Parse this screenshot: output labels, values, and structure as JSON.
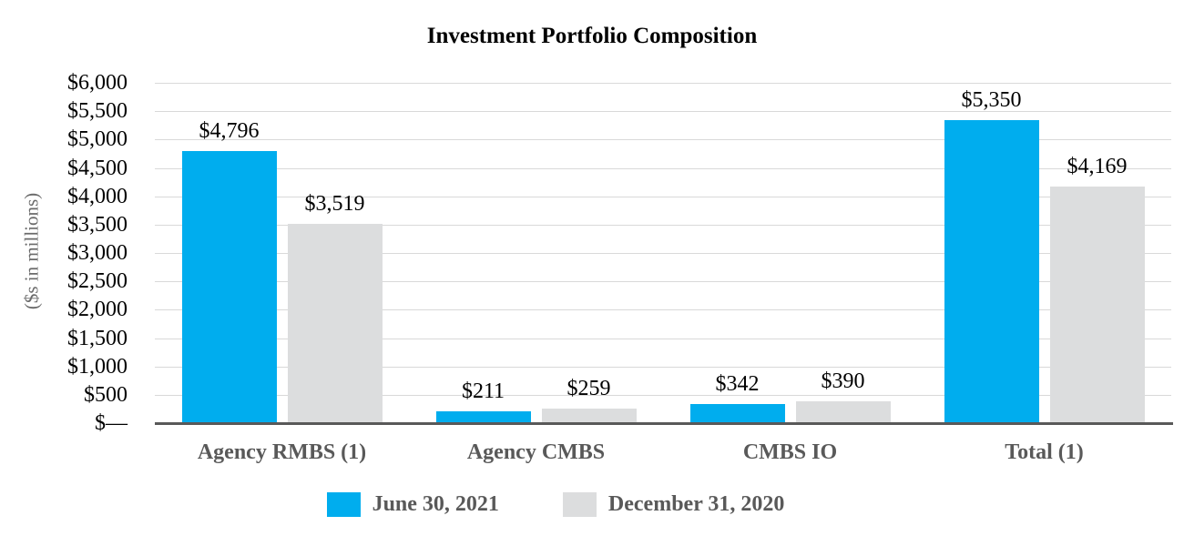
{
  "chart_data": {
    "type": "bar",
    "title": "Investment Portfolio Composition",
    "ylabel": "($s in millions)",
    "categories": [
      "Agency RMBS (1)",
      "Agency CMBS",
      "CMBS IO",
      "Total (1)"
    ],
    "series": [
      {
        "name": "June 30, 2021",
        "color": "#00ADEE",
        "values": [
          4796,
          211,
          342,
          5350
        ],
        "labels": [
          "$4,796",
          "$211",
          "$342",
          "$5,350"
        ]
      },
      {
        "name": "December 31, 2020",
        "color": "#DCDDDE",
        "values": [
          3519,
          259,
          390,
          4169
        ],
        "labels": [
          "$3,519",
          "$259",
          "$390",
          "$4,169"
        ]
      }
    ],
    "y_axis": {
      "min": 0,
      "max": 6000,
      "step": 500,
      "tick_labels": [
        "$—",
        "$500",
        "$1,000",
        "$1,500",
        "$2,000",
        "$2,500",
        "$3,000",
        "$3,500",
        "$4,000",
        "$4,500",
        "$5,000",
        "$5,500",
        "$6,000"
      ]
    },
    "grid": true,
    "legend_position": "bottom",
    "colors": {
      "axis_line": "#595959",
      "gridline": "#D9D9D9",
      "category_text": "#595959",
      "value_text": "#000000"
    }
  }
}
